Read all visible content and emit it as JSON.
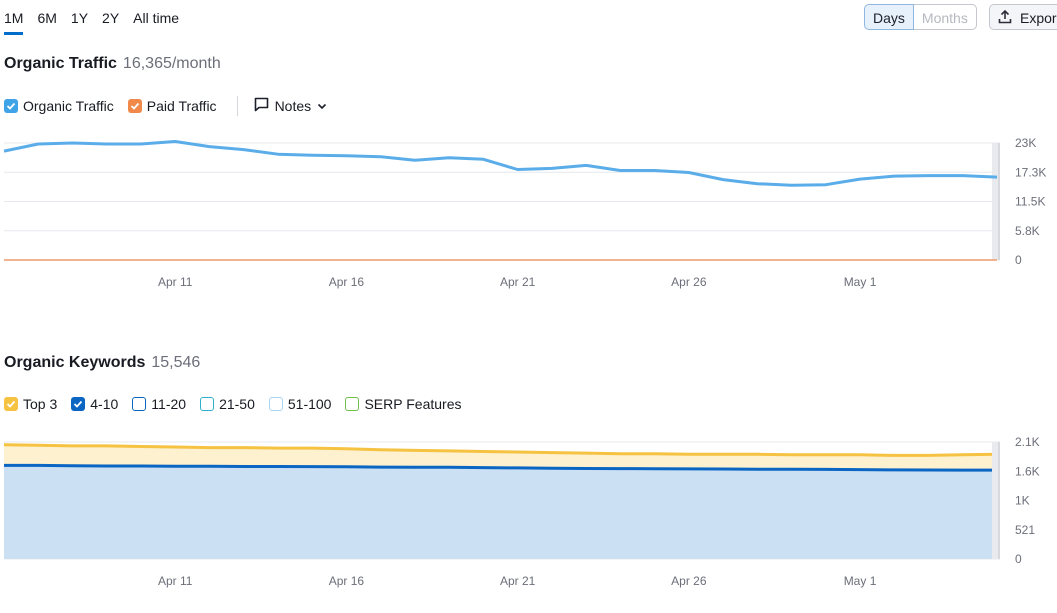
{
  "period_tabs": [
    "1M",
    "6M",
    "1Y",
    "2Y",
    "All time"
  ],
  "granularity": {
    "days": "Days",
    "months": "Months"
  },
  "export_label": "Expor",
  "traffic": {
    "title": "Organic Traffic",
    "value": "16,365/month",
    "legend": {
      "organic": "Organic Traffic",
      "paid": "Paid Traffic"
    },
    "notes": "Notes",
    "y_ticks": [
      "23K",
      "17.3K",
      "11.5K",
      "5.8K",
      "0"
    ],
    "x_ticks": [
      "Apr 11",
      "Apr 16",
      "Apr 21",
      "Apr 26",
      "May 1"
    ]
  },
  "keywords": {
    "title": "Organic Keywords",
    "value": "15,546",
    "legend": [
      "Top 3",
      "4-10",
      "11-20",
      "21-50",
      "51-100",
      "SERP Features"
    ],
    "y_ticks": [
      "2.1K",
      "1.6K",
      "1K",
      "521",
      "0"
    ],
    "x_ticks": [
      "Apr 11",
      "Apr 16",
      "Apr 21",
      "Apr 26",
      "May 1"
    ]
  },
  "colors": {
    "organic": "#5aade9",
    "paid": "#f0894a",
    "top3": "#f5c242",
    "pos4_10": "#0b66c3",
    "pos11_20": "#0b66c3",
    "pos21_50": "#2fb0c8",
    "pos51_100": "#a9d4ee",
    "serp": "#6fbf4a",
    "accent": "#006dca"
  },
  "chart_data": [
    {
      "type": "line",
      "title": "Organic Traffic",
      "x": [
        "Apr 6",
        "Apr 7",
        "Apr 8",
        "Apr 9",
        "Apr 10",
        "Apr 11",
        "Apr 12",
        "Apr 13",
        "Apr 14",
        "Apr 15",
        "Apr 16",
        "Apr 17",
        "Apr 18",
        "Apr 19",
        "Apr 20",
        "Apr 21",
        "Apr 22",
        "Apr 23",
        "Apr 24",
        "Apr 25",
        "Apr 26",
        "Apr 27",
        "Apr 28",
        "Apr 29",
        "Apr 30",
        "May 1",
        "May 2",
        "May 3",
        "May 4",
        "May 5"
      ],
      "series": [
        {
          "name": "Organic Traffic",
          "values": [
            21400,
            22800,
            23000,
            22800,
            22800,
            23300,
            22300,
            21700,
            20800,
            20600,
            20500,
            20300,
            19600,
            20100,
            19800,
            17800,
            18000,
            18600,
            17600,
            17600,
            17200,
            15800,
            15000,
            14700,
            14800,
            15900,
            16500,
            16600,
            16600,
            16300
          ]
        },
        {
          "name": "Paid Traffic",
          "values": [
            0,
            0,
            0,
            0,
            0,
            0,
            0,
            0,
            0,
            0,
            0,
            0,
            0,
            0,
            0,
            0,
            0,
            0,
            0,
            0,
            0,
            0,
            0,
            0,
            0,
            0,
            0,
            0,
            0,
            0
          ]
        }
      ],
      "ylim": [
        0,
        23000
      ]
    },
    {
      "type": "area",
      "title": "Organic Keywords",
      "x": [
        "Apr 6",
        "Apr 7",
        "Apr 8",
        "Apr 9",
        "Apr 10",
        "Apr 11",
        "Apr 12",
        "Apr 13",
        "Apr 14",
        "Apr 15",
        "Apr 16",
        "Apr 17",
        "Apr 18",
        "Apr 19",
        "Apr 20",
        "Apr 21",
        "Apr 22",
        "Apr 23",
        "Apr 24",
        "Apr 25",
        "Apr 26",
        "Apr 27",
        "Apr 28",
        "Apr 29",
        "Apr 30",
        "May 1",
        "May 2",
        "May 3",
        "May 4",
        "May 5"
      ],
      "series": [
        {
          "name": "Top 3",
          "values": [
            2050,
            2040,
            2030,
            2030,
            2020,
            2010,
            2000,
            2000,
            1990,
            1990,
            1980,
            1960,
            1950,
            1940,
            1930,
            1920,
            1910,
            1900,
            1890,
            1890,
            1880,
            1880,
            1880,
            1870,
            1870,
            1870,
            1860,
            1860,
            1870,
            1880
          ]
        },
        {
          "name": "4-10",
          "values": [
            1680,
            1680,
            1675,
            1670,
            1670,
            1665,
            1665,
            1660,
            1660,
            1658,
            1655,
            1650,
            1648,
            1645,
            1640,
            1635,
            1630,
            1625,
            1622,
            1620,
            1618,
            1615,
            1612,
            1610,
            1608,
            1605,
            1600,
            1598,
            1596,
            1595
          ]
        }
      ],
      "ylim": [
        0,
        2100
      ]
    }
  ]
}
